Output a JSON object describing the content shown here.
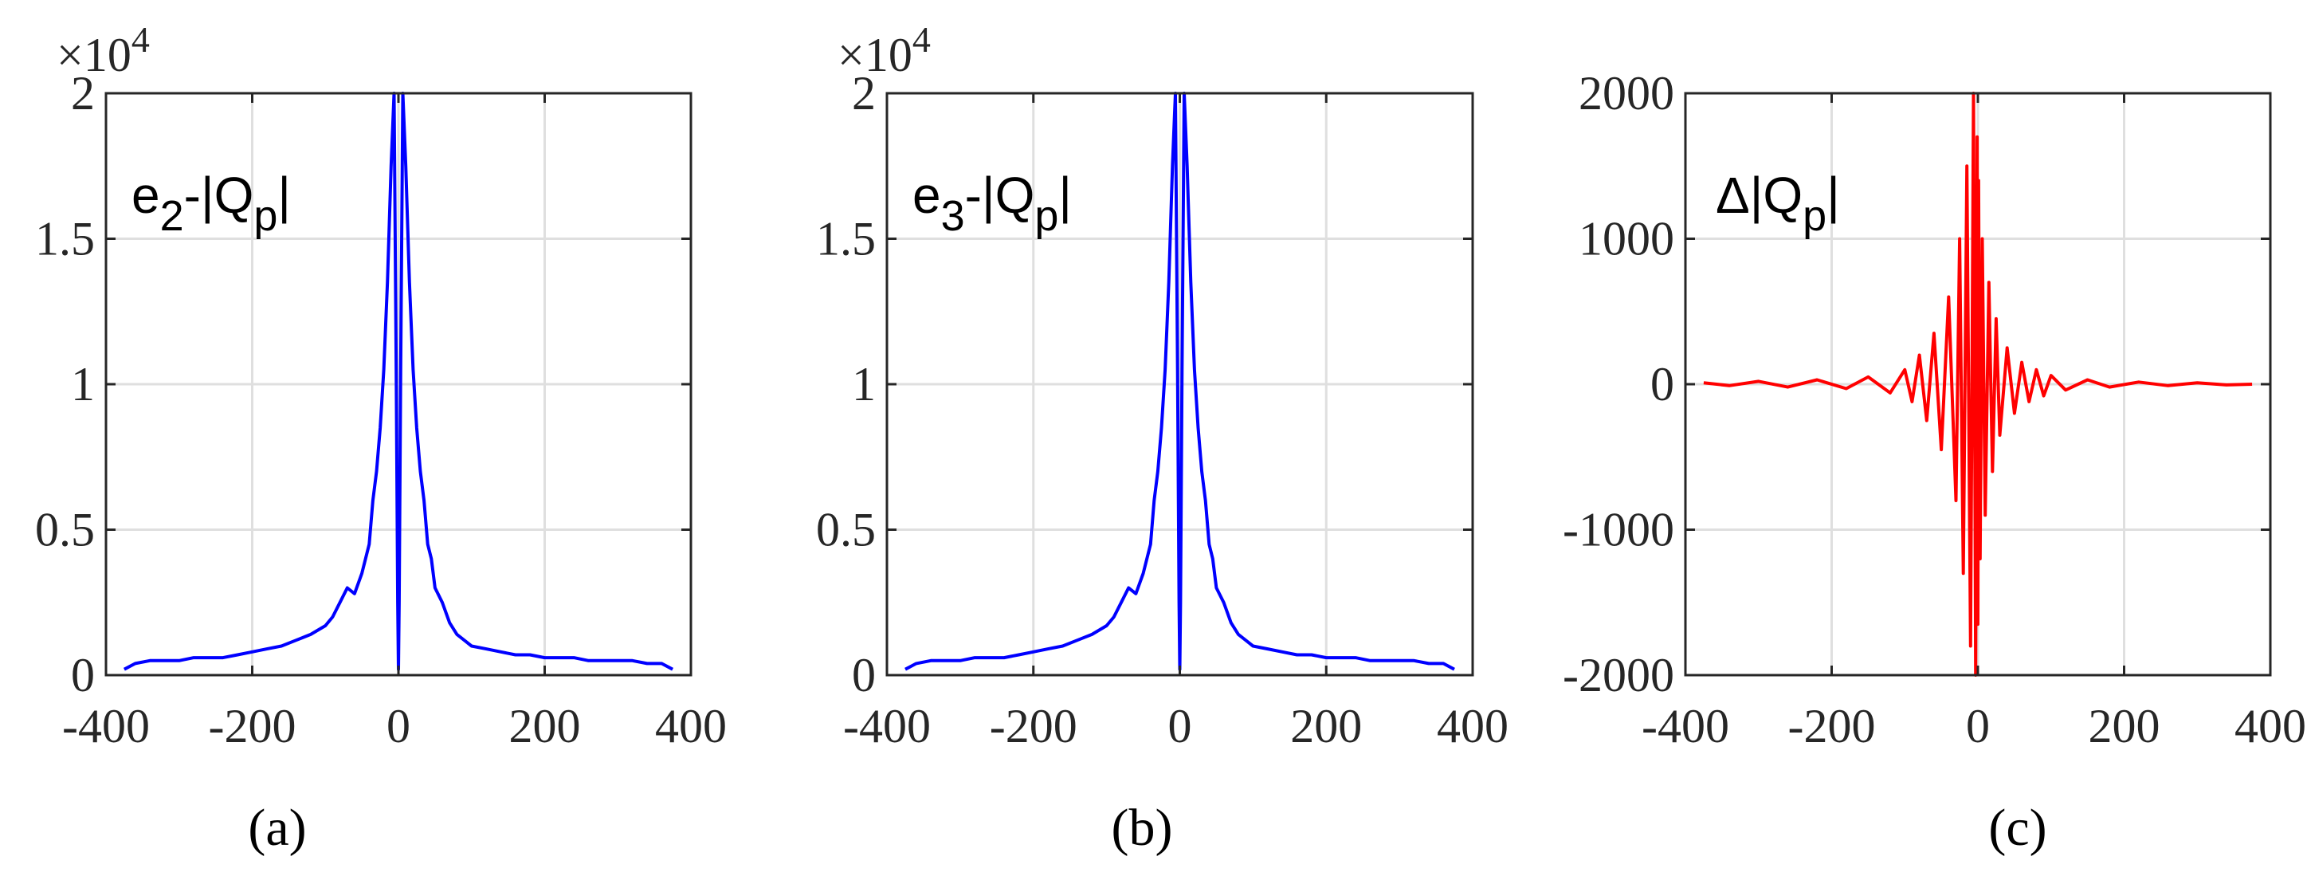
{
  "chart_data": [
    {
      "type": "line",
      "panel_label": "(a)",
      "annotation": {
        "prefix": "e",
        "sub1": "2",
        "mid": "-|Q",
        "sub2": "p",
        "suffix": "|"
      },
      "y_multiplier": {
        "base": "×10",
        "exp": "4"
      },
      "xlim": [
        -400,
        400
      ],
      "ylim": [
        0,
        2
      ],
      "x_ticks": [
        "-400",
        "-200",
        "0",
        "200",
        "400"
      ],
      "y_ticks": [
        "0",
        "0.5",
        "1",
        "1.5",
        "2"
      ],
      "grid": true,
      "color": "#0000ff",
      "series": [
        {
          "x": [
            -375,
            -360,
            -340,
            -320,
            -300,
            -280,
            -260,
            -240,
            -220,
            -200,
            -180,
            -160,
            -140,
            -120,
            -100,
            -90,
            -80,
            -70,
            -60,
            -50,
            -45,
            -40,
            -35,
            -30,
            -25,
            -20,
            -15,
            -10,
            -6,
            -3,
            -1,
            0,
            1,
            3,
            6,
            10,
            15,
            20,
            25,
            30,
            35,
            40,
            45,
            50,
            60,
            70,
            80,
            90,
            100,
            120,
            140,
            160,
            180,
            200,
            220,
            240,
            260,
            280,
            300,
            320,
            340,
            360,
            375
          ],
          "y": [
            0.02,
            0.04,
            0.05,
            0.05,
            0.05,
            0.06,
            0.06,
            0.06,
            0.07,
            0.08,
            0.09,
            0.1,
            0.12,
            0.14,
            0.17,
            0.2,
            0.25,
            0.3,
            0.28,
            0.35,
            0.4,
            0.45,
            0.6,
            0.7,
            0.85,
            1.05,
            1.35,
            1.75,
            2.0,
            1.05,
            0.25,
            0.02,
            0.25,
            1.05,
            2.0,
            1.75,
            1.35,
            1.05,
            0.85,
            0.7,
            0.6,
            0.45,
            0.4,
            0.3,
            0.25,
            0.18,
            0.14,
            0.12,
            0.1,
            0.09,
            0.08,
            0.07,
            0.07,
            0.06,
            0.06,
            0.06,
            0.05,
            0.05,
            0.05,
            0.05,
            0.04,
            0.04,
            0.02
          ]
        }
      ]
    },
    {
      "type": "line",
      "panel_label": "(b)",
      "annotation": {
        "prefix": "e",
        "sub1": "3",
        "mid": "-|Q",
        "sub2": "p",
        "suffix": "|"
      },
      "y_multiplier": {
        "base": "×10",
        "exp": "4"
      },
      "xlim": [
        -400,
        400
      ],
      "ylim": [
        0,
        2
      ],
      "x_ticks": [
        "-400",
        "-200",
        "0",
        "200",
        "400"
      ],
      "y_ticks": [
        "0",
        "0.5",
        "1",
        "1.5",
        "2"
      ],
      "grid": true,
      "color": "#0000ff",
      "series": [
        {
          "x": [
            -375,
            -360,
            -340,
            -320,
            -300,
            -280,
            -260,
            -240,
            -220,
            -200,
            -180,
            -160,
            -140,
            -120,
            -100,
            -90,
            -80,
            -70,
            -60,
            -50,
            -45,
            -40,
            -35,
            -30,
            -25,
            -20,
            -15,
            -10,
            -6,
            -3,
            -1,
            0,
            1,
            3,
            6,
            10,
            15,
            20,
            25,
            30,
            35,
            40,
            45,
            50,
            60,
            70,
            80,
            90,
            100,
            120,
            140,
            160,
            180,
            200,
            220,
            240,
            260,
            280,
            300,
            320,
            340,
            360,
            375
          ],
          "y": [
            0.02,
            0.04,
            0.05,
            0.05,
            0.05,
            0.06,
            0.06,
            0.06,
            0.07,
            0.08,
            0.09,
            0.1,
            0.12,
            0.14,
            0.17,
            0.2,
            0.25,
            0.3,
            0.28,
            0.35,
            0.4,
            0.45,
            0.6,
            0.7,
            0.85,
            1.05,
            1.35,
            1.75,
            2.0,
            1.05,
            0.25,
            0.02,
            0.25,
            1.05,
            2.0,
            1.75,
            1.35,
            1.05,
            0.85,
            0.7,
            0.6,
            0.45,
            0.4,
            0.3,
            0.25,
            0.18,
            0.14,
            0.12,
            0.1,
            0.09,
            0.08,
            0.07,
            0.07,
            0.06,
            0.06,
            0.06,
            0.05,
            0.05,
            0.05,
            0.05,
            0.04,
            0.04,
            0.02
          ]
        }
      ]
    },
    {
      "type": "line",
      "panel_label": "(c)",
      "annotation": {
        "prefix": "Δ|Q",
        "sub1": "p",
        "suffix": "|"
      },
      "xlim": [
        -400,
        400
      ],
      "ylim": [
        -2000,
        2000
      ],
      "x_ticks": [
        "-400",
        "-200",
        "0",
        "200",
        "400"
      ],
      "y_ticks": [
        "-2000",
        "-1000",
        "0",
        "1000",
        "2000"
      ],
      "grid": true,
      "color": "#ff0000",
      "series": [
        {
          "x": [
            -375,
            -340,
            -300,
            -260,
            -220,
            -180,
            -150,
            -120,
            -100,
            -90,
            -80,
            -70,
            -60,
            -50,
            -40,
            -30,
            -25,
            -20,
            -15,
            -10,
            -6,
            -3,
            -1,
            0,
            1,
            3,
            6,
            10,
            15,
            20,
            25,
            30,
            40,
            50,
            60,
            70,
            80,
            90,
            100,
            120,
            150,
            180,
            220,
            260,
            300,
            340,
            375
          ],
          "y": [
            10,
            -10,
            20,
            -20,
            30,
            -30,
            50,
            -60,
            100,
            -120,
            200,
            -250,
            350,
            -450,
            600,
            -800,
            1000,
            -1300,
            1500,
            -1800,
            2000,
            -2000,
            1700,
            -1650,
            1400,
            -1200,
            1000,
            -900,
            700,
            -600,
            450,
            -350,
            250,
            -200,
            150,
            -120,
            100,
            -80,
            60,
            -40,
            30,
            -20,
            15,
            -10,
            10,
            -5,
            0
          ]
        }
      ]
    }
  ]
}
